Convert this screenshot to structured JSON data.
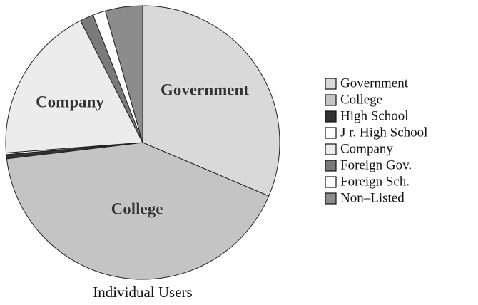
{
  "chart_data": {
    "type": "pie",
    "title": "Individual Users",
    "categories": [
      "Government",
      "College",
      "High School",
      "J r. High School",
      "Company",
      "Foreign Gov.",
      "Foreign Sch.",
      "Non–Listed"
    ],
    "values": [
      31.4,
      41.7,
      0.5,
      0.2,
      18.7,
      1.6,
      1.5,
      4.4
    ],
    "colors": [
      "#d9d9d9",
      "#c4c4c4",
      "#333333",
      "#ffffff",
      "#ececec",
      "#7a7a7a",
      "#ffffff",
      "#8c8c8c"
    ]
  }
}
